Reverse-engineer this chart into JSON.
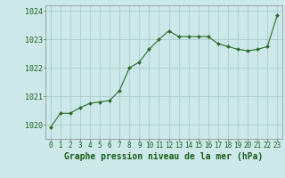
{
  "x": [
    0,
    1,
    2,
    3,
    4,
    5,
    6,
    7,
    8,
    9,
    10,
    11,
    12,
    13,
    14,
    15,
    16,
    17,
    18,
    19,
    20,
    21,
    22,
    23
  ],
  "y": [
    1019.9,
    1020.4,
    1020.4,
    1020.6,
    1020.75,
    1020.8,
    1020.85,
    1021.2,
    1022.0,
    1022.2,
    1022.65,
    1023.0,
    1023.3,
    1023.1,
    1023.1,
    1023.1,
    1023.1,
    1022.85,
    1022.75,
    1022.65,
    1022.6,
    1022.65,
    1022.75,
    1023.85
  ],
  "ylim": [
    1019.5,
    1024.2
  ],
  "yticks": [
    1020,
    1021,
    1022,
    1023,
    1024
  ],
  "xticks": [
    0,
    1,
    2,
    3,
    4,
    5,
    6,
    7,
    8,
    9,
    10,
    11,
    12,
    13,
    14,
    15,
    16,
    17,
    18,
    19,
    20,
    21,
    22,
    23
  ],
  "xlabel": "Graphe pression niveau de la mer (hPa)",
  "line_color": "#2d6a2d",
  "marker_color": "#2d6a2d",
  "bg_color": "#cce8e8",
  "grid_color": "#aacccc",
  "xlabel_color": "#1a5c1a",
  "xlabel_fontsize": 7.0,
  "tick_fontsize": 5.5,
  "ytick_fontsize": 6.0
}
